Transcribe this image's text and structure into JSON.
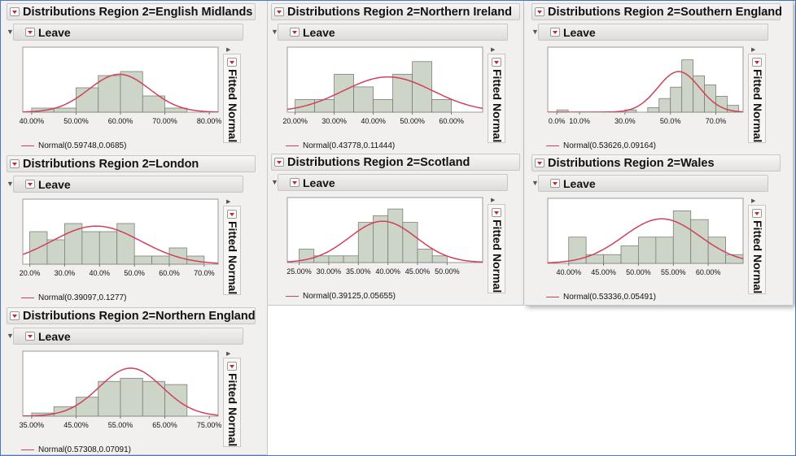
{
  "panels": [
    {
      "id": "left",
      "charts": [
        {
          "title": "Distributions Region 2=English Midlands",
          "variable": "Leave",
          "fit_label": "Fitted Normal",
          "legend": "Normal(0.59748,0.0685)",
          "type": "bar",
          "xlim": [
            0.38,
            0.82
          ],
          "ylim": [
            0,
            14
          ],
          "bins": [
            [
              0.4,
              0.45,
              1
            ],
            [
              0.45,
              0.5,
              1
            ],
            [
              0.5,
              0.55,
              6
            ],
            [
              0.55,
              0.6,
              9
            ],
            [
              0.6,
              0.65,
              10
            ],
            [
              0.65,
              0.7,
              4
            ],
            [
              0.7,
              0.75,
              1
            ],
            [
              0.75,
              0.8,
              0
            ]
          ],
          "fit": {
            "mean": 0.59748,
            "sd": 0.0685
          },
          "ticks": [
            0.4,
            0.5,
            0.6,
            0.7,
            0.8
          ],
          "tick_labels": [
            "40.00%",
            "50.00%",
            "60.00%",
            "70.00%",
            "80.00%"
          ]
        },
        {
          "title": "Distributions Region 2=London",
          "variable": "Leave",
          "fit_label": "Fitted Normal",
          "legend": "Normal(0.39097,0.1277)",
          "type": "bar",
          "xlim": [
            0.18,
            0.74
          ],
          "ylim": [
            0,
            7
          ],
          "bins": [
            [
              0.2,
              0.25,
              4
            ],
            [
              0.25,
              0.3,
              3
            ],
            [
              0.3,
              0.35,
              5
            ],
            [
              0.35,
              0.4,
              4
            ],
            [
              0.4,
              0.45,
              4
            ],
            [
              0.45,
              0.5,
              5
            ],
            [
              0.5,
              0.55,
              1
            ],
            [
              0.55,
              0.6,
              1
            ],
            [
              0.6,
              0.65,
              2
            ],
            [
              0.65,
              0.7,
              1
            ]
          ],
          "fit": {
            "mean": 0.39097,
            "sd": 0.1277
          },
          "ticks": [
            0.2,
            0.3,
            0.4,
            0.5,
            0.6,
            0.7
          ],
          "tick_labels": [
            "20.0%",
            "30.0%",
            "40.0%",
            "50.0%",
            "60.0%",
            "70.0%"
          ]
        },
        {
          "title": "Distributions Region 2=Northern England",
          "variable": "Leave",
          "fit_label": "Fitted Normal",
          "legend": "Normal(0.57308,0.07091)",
          "type": "bar",
          "xlim": [
            0.33,
            0.77
          ],
          "ylim": [
            0,
            18
          ],
          "bins": [
            [
              0.35,
              0.4,
              1
            ],
            [
              0.4,
              0.45,
              3
            ],
            [
              0.45,
              0.5,
              6
            ],
            [
              0.5,
              0.55,
              11
            ],
            [
              0.55,
              0.6,
              12
            ],
            [
              0.6,
              0.65,
              11
            ],
            [
              0.65,
              0.7,
              10
            ],
            [
              0.7,
              0.75,
              0
            ]
          ],
          "fit": {
            "mean": 0.57308,
            "sd": 0.07091
          },
          "ticks": [
            0.35,
            0.45,
            0.55,
            0.65,
            0.75
          ],
          "tick_labels": [
            "35.00%",
            "45.00%",
            "55.00%",
            "65.00%",
            "75.00%"
          ]
        }
      ]
    },
    {
      "id": "middle",
      "charts": [
        {
          "title": "Distributions Region 2=Northern Ireland",
          "variable": "Leave",
          "fit_label": "Fitted Normal",
          "legend": "Normal(0.43778,0.11444)",
          "type": "bar",
          "xlim": [
            0.18,
            0.68
          ],
          "ylim": [
            0,
            4.5
          ],
          "bins": [
            [
              0.2,
              0.25,
              1
            ],
            [
              0.25,
              0.3,
              1
            ],
            [
              0.3,
              0.35,
              3
            ],
            [
              0.35,
              0.4,
              2
            ],
            [
              0.4,
              0.45,
              1
            ],
            [
              0.45,
              0.5,
              3
            ],
            [
              0.5,
              0.55,
              4
            ],
            [
              0.55,
              0.6,
              1
            ]
          ],
          "fit": {
            "mean": 0.43778,
            "sd": 0.11444
          },
          "ticks": [
            0.2,
            0.3,
            0.4,
            0.5,
            0.6
          ],
          "tick_labels": [
            "20.00%",
            "30.00%",
            "40.00%",
            "50.00%",
            "60.00%"
          ]
        },
        {
          "title": "Distributions Region 2=Scotland",
          "variable": "Leave",
          "fit_label": "Fitted Normal",
          "legend": "Normal(0.39125,0.05655)",
          "type": "bar",
          "xlim": [
            0.23,
            0.56
          ],
          "ylim": [
            0,
            8.5
          ],
          "bins": [
            [
              0.25,
              0.275,
              2
            ],
            [
              0.275,
              0.3,
              1
            ],
            [
              0.3,
              0.325,
              1
            ],
            [
              0.325,
              0.35,
              1
            ],
            [
              0.35,
              0.375,
              6
            ],
            [
              0.375,
              0.4,
              7
            ],
            [
              0.4,
              0.425,
              8
            ],
            [
              0.425,
              0.45,
              6
            ],
            [
              0.45,
              0.475,
              2
            ],
            [
              0.475,
              0.5,
              1
            ]
          ],
          "fit": {
            "mean": 0.39125,
            "sd": 0.05655
          },
          "ticks": [
            0.25,
            0.3,
            0.35,
            0.4,
            0.45,
            0.5
          ],
          "tick_labels": [
            "25.00%",
            "30.00%",
            "35.00%",
            "40.00%",
            "45.00%",
            "50.00%"
          ]
        }
      ]
    },
    {
      "id": "right",
      "charts": [
        {
          "title": "Distributions Region 2=Southern England",
          "variable": "Leave",
          "fit_label": "Fitted Normal",
          "legend": "Normal(0.53626,0.09164)",
          "type": "bar",
          "xlim": [
            -0.04,
            0.82
          ],
          "ylim": [
            0,
            25
          ],
          "bins": [
            [
              0.0,
              0.05,
              1
            ],
            [
              0.05,
              0.1,
              0
            ],
            [
              0.1,
              0.15,
              0
            ],
            [
              0.15,
              0.2,
              0
            ],
            [
              0.2,
              0.25,
              0
            ],
            [
              0.25,
              0.3,
              0
            ],
            [
              0.3,
              0.35,
              1
            ],
            [
              0.35,
              0.4,
              0
            ],
            [
              0.4,
              0.45,
              2
            ],
            [
              0.45,
              0.5,
              6
            ],
            [
              0.5,
              0.55,
              11
            ],
            [
              0.55,
              0.6,
              23
            ],
            [
              0.6,
              0.65,
              16
            ],
            [
              0.65,
              0.7,
              12
            ],
            [
              0.7,
              0.75,
              7
            ],
            [
              0.75,
              0.8,
              3
            ]
          ],
          "fit": {
            "mean": 0.53626,
            "sd": 0.09164
          },
          "ticks": [
            0.0,
            0.1,
            0.3,
            0.5,
            0.7
          ],
          "tick_labels": [
            "0.0%",
            "10.0%",
            "30.0%",
            "50.0%",
            "70.0%"
          ]
        },
        {
          "title": "Distributions Region 2=Wales",
          "variable": "Leave",
          "fit_label": "Fitted Normal",
          "legend": "Normal(0.53336,0.05491)",
          "type": "bar",
          "xlim": [
            0.37,
            0.65
          ],
          "ylim": [
            0,
            6.5
          ],
          "bins": [
            [
              0.4,
              0.425,
              3
            ],
            [
              0.425,
              0.45,
              1
            ],
            [
              0.45,
              0.475,
              1
            ],
            [
              0.475,
              0.5,
              2
            ],
            [
              0.5,
              0.525,
              3
            ],
            [
              0.525,
              0.55,
              3
            ],
            [
              0.55,
              0.575,
              6
            ],
            [
              0.575,
              0.6,
              5
            ],
            [
              0.6,
              0.625,
              3
            ],
            [
              0.625,
              0.65,
              1
            ]
          ],
          "fit": {
            "mean": 0.53336,
            "sd": 0.05491
          },
          "ticks": [
            0.4,
            0.45,
            0.5,
            0.55,
            0.6
          ],
          "tick_labels": [
            "40.00%",
            "45.00%",
            "50.00%",
            "55.00%",
            "60.00%"
          ]
        }
      ]
    }
  ],
  "colors": {
    "bar_fill": "#cdd5c8",
    "bar_stroke": "#7b8178",
    "fit_curve": "#d0405a"
  }
}
